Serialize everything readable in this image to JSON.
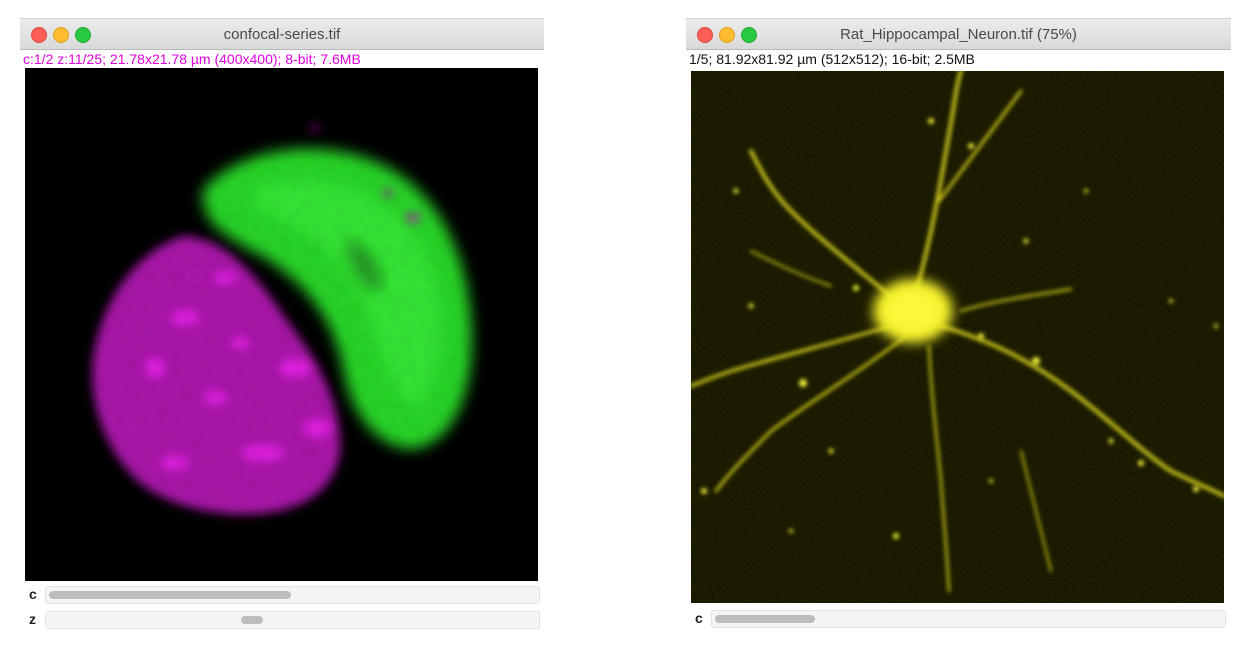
{
  "windows": {
    "confocal": {
      "title": "confocal-series.tif",
      "info": "c:1/2 z:11/25; 21.78x21.78 µm (400x400); 8-bit; 7.6MB",
      "sliders": {
        "c": {
          "label": "c",
          "value": 1,
          "max": 2
        },
        "z": {
          "label": "z",
          "value": 11,
          "max": 25
        }
      }
    },
    "neuron": {
      "title": "Rat_Hippocampal_Neuron.tif (75%)",
      "info": "1/5; 81.92x81.92 µm (512x512); 16-bit; 2.5MB",
      "sliders": {
        "c": {
          "label": "c",
          "value": 1,
          "max": 5
        }
      }
    }
  },
  "colors": {
    "channel_green": "#2ee62e",
    "channel_magenta": "#d21ad2",
    "neuron_yellow": "#f0ec28",
    "close": "#fe5f57",
    "minimize": "#febc2e",
    "zoom": "#28c840"
  }
}
